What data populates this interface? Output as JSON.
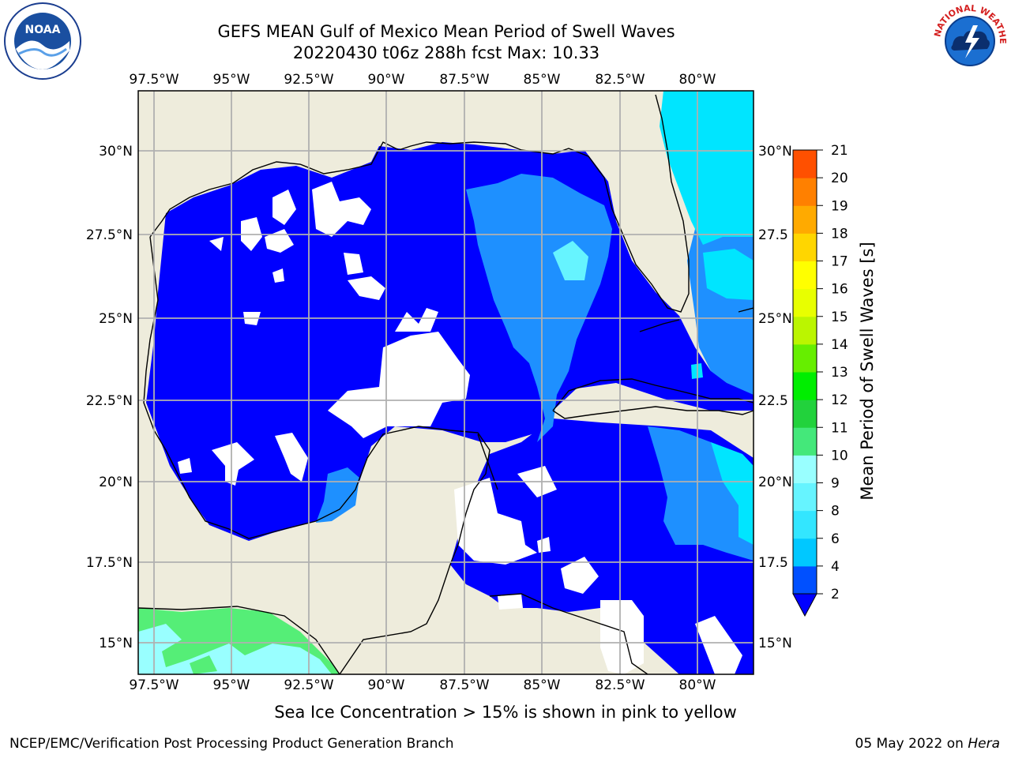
{
  "title": {
    "line1": "GEFS MEAN Gulf of Mexico Mean Period of Swell Waves",
    "line2": "20220430 t06z 288h fcst   Max: 10.33"
  },
  "logos": {
    "left": "noaa-logo",
    "left_text": "NOAA",
    "right": "national-weather-service-logo",
    "right_text": "NATIONAL WEATHER SERVICE"
  },
  "map": {
    "lon_labels": [
      "97.5°W",
      "95°W",
      "92.5°W",
      "90°W",
      "87.5°W",
      "85°W",
      "82.5°W",
      "80°W"
    ],
    "lat_labels_left": [
      "30°N",
      "27.5°N",
      "25°N",
      "22.5°N",
      "20°N",
      "17.5°N",
      "15°N"
    ],
    "lat_labels_right": [
      "30°N",
      "27.5",
      "25°N",
      "22.5",
      "20°N",
      "17.5",
      "15°N"
    ],
    "colors": {
      "land": "#eeecdc",
      "ocean_2_4": "#0000ff",
      "ocean_4_6": "#1e90ff",
      "ocean_6_8": "#00e5ff",
      "ocean_8_10": "#99ffff",
      "ocean_10_12": "#55ee77",
      "grid": "#b0b0b0"
    }
  },
  "colorbar": {
    "label": "Mean Period of Swell Waves [s]",
    "ticks": [
      "2",
      "4",
      "6",
      "8",
      "9",
      "10",
      "11",
      "12",
      "13",
      "14",
      "15",
      "16",
      "17",
      "18",
      "19",
      "20",
      "21"
    ],
    "colors": [
      "#0050ff",
      "#00c8ff",
      "#33e6ff",
      "#66f4ff",
      "#99ffff",
      "#44e87a",
      "#22d23c",
      "#00ee00",
      "#66ee00",
      "#bbf500",
      "#e8ff00",
      "#ffff00",
      "#ffd600",
      "#ffaa00",
      "#ff8000",
      "#ff5000",
      "#ff2200",
      "#ff0000"
    ]
  },
  "caption": "Sea Ice Concentration > 15% is shown in pink to yellow",
  "footer": {
    "left": "NCEP/EMC/Verification Post Processing Product Generation Branch",
    "right_date": "05 May 2022 on ",
    "right_host": "Hera"
  }
}
